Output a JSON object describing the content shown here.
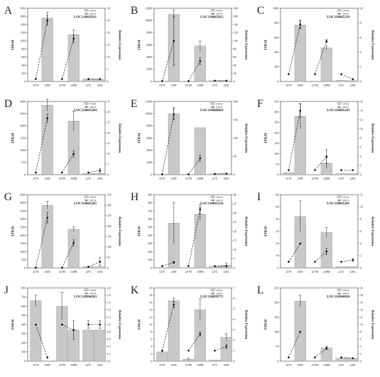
{
  "figure": {
    "legend_fpkm": "FPKM",
    "legend_qpcr": "QPCR",
    "ylabel_left": "FPKM",
    "ylabel_right": "Relative Expression",
    "colors": {
      "bar": "#c8c8c8",
      "bar_stroke": "#8a8a8a",
      "line": "#000000",
      "error": "#222222"
    }
  },
  "chart_data": [
    {
      "panel": "A",
      "type": "bar",
      "gene": "LOC110865031",
      "categories": [
        "227E",
        "228E",
        "227M",
        "228M",
        "227L",
        "228L"
      ],
      "series": [
        {
          "name": "FPKM",
          "values": [
            0,
            1560,
            0,
            1150,
            60,
            50
          ],
          "errors": [
            0,
            140,
            0,
            120,
            0,
            0
          ]
        },
        {
          "name": "QPCR",
          "values": [
            1,
            25,
            1,
            17.5,
            1,
            1
          ],
          "errors": [
            0,
            2,
            0,
            1.5,
            0,
            0
          ]
        }
      ],
      "yticks_left": [
        "0",
        "200",
        "400",
        "600",
        "800",
        "1000",
        "1200",
        "1400",
        "1600",
        "1800"
      ],
      "ylim_left": [
        0,
        1800
      ],
      "yticks_right": [
        "0",
        "5",
        "10",
        "15",
        "20",
        "25",
        "30"
      ],
      "ylim_right": [
        0,
        30
      ]
    },
    {
      "panel": "B",
      "type": "bar",
      "gene": "LOC110865032",
      "categories": [
        "227E",
        "228E",
        "227M",
        "228M",
        "227L",
        "228L"
      ],
      "series": [
        {
          "name": "FPKM",
          "values": [
            0,
            11000,
            0,
            5800,
            150,
            100
          ],
          "errors": [
            0,
            700,
            0,
            800,
            0,
            0
          ]
        },
        {
          "name": "QPCR",
          "values": [
            1,
            100,
            1,
            50,
            2,
            2
          ],
          "errors": [
            0,
            60,
            0,
            8,
            0,
            0
          ]
        }
      ],
      "yticks_left": [
        "0",
        "2000",
        "4000",
        "6000",
        "8000",
        "10000",
        "12000"
      ],
      "ylim_left": [
        0,
        12000
      ],
      "yticks_right": [
        "0",
        "20",
        "40",
        "60",
        "80",
        "100",
        "120",
        "140",
        "160",
        "180"
      ],
      "ylim_right": [
        0,
        180
      ]
    },
    {
      "panel": "C",
      "type": "bar",
      "gene": "LOC110865239",
      "categories": [
        "227E",
        "228E",
        "227M",
        "228M",
        "227L",
        "228L"
      ],
      "series": [
        {
          "name": "FPKM",
          "values": [
            0,
            770,
            0,
            460,
            15,
            10
          ],
          "errors": [
            0,
            55,
            0,
            25,
            0,
            0
          ]
        },
        {
          "name": "QPCR",
          "values": [
            1,
            7.8,
            1,
            5.5,
            1,
            0.3
          ],
          "errors": [
            0,
            0.6,
            0,
            0.2,
            0,
            0
          ]
        }
      ],
      "yticks_left": [
        "0",
        "200",
        "400",
        "600",
        "800",
        "1000"
      ],
      "ylim_left": [
        0,
        1000
      ],
      "yticks_right": [
        "0",
        "2",
        "4",
        "6",
        "8",
        "10"
      ],
      "ylim_right": [
        0,
        10
      ]
    },
    {
      "panel": "D",
      "type": "bar",
      "gene": "LOC110865284",
      "categories": [
        "227E",
        "228E",
        "227M",
        "228M",
        "227L",
        "228L"
      ],
      "series": [
        {
          "name": "FPKM",
          "values": [
            0,
            2850,
            0,
            2200,
            50,
            50
          ],
          "errors": [
            0,
            250,
            0,
            400,
            0,
            0
          ]
        },
        {
          "name": "QPCR",
          "values": [
            1,
            27,
            1,
            10,
            1,
            2
          ],
          "errors": [
            0,
            2,
            0,
            1.5,
            0,
            1
          ]
        }
      ],
      "yticks_left": [
        "0",
        "500",
        "1000",
        "1500",
        "2000",
        "2500",
        "3000"
      ],
      "ylim_left": [
        0,
        3000
      ],
      "yticks_right": [
        "0",
        "5",
        "10",
        "15",
        "20",
        "25",
        "30",
        "35"
      ],
      "ylim_right": [
        0,
        35
      ]
    },
    {
      "panel": "E",
      "type": "bar",
      "gene": "LOC110868664",
      "categories": [
        "227E",
        "228E",
        "227M",
        "228M",
        "227L",
        "228L"
      ],
      "series": [
        {
          "name": "FPKM",
          "values": [
            0,
            10000,
            0,
            7700,
            150,
            150
          ],
          "errors": [
            0,
            1000,
            0,
            0,
            0,
            0
          ]
        },
        {
          "name": "QPCR",
          "values": [
            1,
            165,
            1,
            45,
            2,
            3
          ],
          "errors": [
            0,
            15,
            0,
            8,
            0,
            0
          ]
        }
      ],
      "yticks_left": [
        "0",
        "2000",
        "4000",
        "6000",
        "8000",
        "10000",
        "12000"
      ],
      "ylim_left": [
        0,
        12000
      ],
      "yticks_right": [
        "0",
        "50",
        "100",
        "150",
        "200"
      ],
      "ylim_right": [
        0,
        200
      ]
    },
    {
      "panel": "F",
      "type": "bar",
      "gene": "LOC110885243",
      "categories": [
        "227E",
        "228E",
        "227M",
        "228M",
        "227L",
        "228L"
      ],
      "series": [
        {
          "name": "FPKM",
          "values": [
            10,
            280,
            0,
            55,
            5,
            5
          ],
          "errors": [
            0,
            60,
            0,
            25,
            0,
            0
          ]
        },
        {
          "name": "QPCR",
          "values": [
            1,
            14,
            1,
            4,
            1,
            1
          ],
          "errors": [
            0,
            1.5,
            0,
            1.5,
            0,
            0
          ]
        }
      ],
      "yticks_left": [
        "0",
        "50",
        "100",
        "150",
        "200",
        "250",
        "300",
        "350"
      ],
      "ylim_left": [
        0,
        350
      ],
      "yticks_right": [
        "0",
        "2",
        "4",
        "6",
        "8",
        "10",
        "12",
        "14",
        "16"
      ],
      "ylim_right": [
        0,
        16
      ]
    },
    {
      "panel": "G",
      "type": "bar",
      "gene": "LOC110865285",
      "categories": [
        "227E",
        "228E",
        "227M",
        "228M",
        "227L",
        "228L"
      ],
      "series": [
        {
          "name": "FPKM",
          "values": [
            0,
            3850,
            0,
            2380,
            80,
            60
          ],
          "errors": [
            0,
            250,
            0,
            150,
            0,
            0
          ]
        },
        {
          "name": "QPCR",
          "values": [
            1,
            240,
            1,
            120,
            5,
            30
          ],
          "errors": [
            0,
            25,
            0,
            15,
            0,
            20
          ]
        }
      ],
      "yticks_left": [
        "0",
        "500",
        "1000",
        "1500",
        "2000",
        "2500",
        "3000",
        "3500",
        "4000",
        "4500"
      ],
      "ylim_left": [
        0,
        4500
      ],
      "yticks_right": [
        "0",
        "50",
        "100",
        "150",
        "200",
        "250",
        "300",
        "350"
      ],
      "ylim_right": [
        0,
        350
      ]
    },
    {
      "panel": "H",
      "type": "bar",
      "gene": "LOC110865236",
      "categories": [
        "227E",
        "228E",
        "227M",
        "228M",
        "227L",
        "228L"
      ],
      "series": [
        {
          "name": "FPKM",
          "values": [
            0,
            550,
            0,
            660,
            20,
            30
          ],
          "errors": [
            0,
            250,
            0,
            80,
            0,
            30
          ]
        },
        {
          "name": "QPCR",
          "values": [
            1,
            3,
            1,
            32,
            1,
            1
          ],
          "errors": [
            0,
            0.5,
            0,
            2.5,
            0,
            0
          ]
        }
      ],
      "yticks_left": [
        "0",
        "100",
        "200",
        "300",
        "400",
        "500",
        "600",
        "700",
        "800",
        "900"
      ],
      "ylim_left": [
        0,
        900
      ],
      "yticks_right": [
        "0",
        "5",
        "10",
        "15",
        "20",
        "25",
        "30",
        "35",
        "40"
      ],
      "ylim_right": [
        0,
        40
      ]
    },
    {
      "panel": "I",
      "type": "bar",
      "gene": "LOC110865281",
      "categories": [
        "227E",
        "228E",
        "227M",
        "228M",
        "227L",
        "228L"
      ],
      "series": [
        {
          "name": "FPKM",
          "values": [
            0,
            42,
            0,
            29,
            1,
            1
          ],
          "errors": [
            0,
            13,
            0,
            4,
            0,
            0
          ]
        },
        {
          "name": "QPCR",
          "values": [
            1,
            4,
            1,
            2.7,
            1,
            1.3
          ],
          "errors": [
            0,
            0,
            0,
            0.5,
            0,
            0.2
          ]
        }
      ],
      "yticks_left": [
        "0",
        "10",
        "20",
        "30",
        "40",
        "50",
        "60"
      ],
      "ylim_left": [
        0,
        60
      ],
      "yticks_right": [
        "0",
        "2",
        "4",
        "6",
        "8",
        "10",
        "12"
      ],
      "ylim_right": [
        0,
        12
      ]
    },
    {
      "panel": "J",
      "type": "bar",
      "gene": "LOC110904203",
      "categories": [
        "227E",
        "228E",
        "227M",
        "228M",
        "227L",
        "228L"
      ],
      "series": [
        {
          "name": "FPKM",
          "values": [
            660,
            0,
            600,
            340,
            340,
            340
          ],
          "errors": [
            60,
            0,
            150,
            0,
            0,
            0
          ]
        },
        {
          "name": "QPCR",
          "values": [
            1,
            0.1,
            1,
            0.85,
            1,
            1
          ],
          "errors": [
            0,
            0,
            0,
            0.25,
            0.1,
            0.1
          ]
        }
      ],
      "yticks_left": [
        "0",
        "100",
        "200",
        "300",
        "400",
        "500",
        "600",
        "700",
        "800"
      ],
      "ylim_left": [
        0,
        800
      ],
      "yticks_right": [
        "0.0",
        "0.2",
        "0.4",
        "0.6",
        "0.8",
        "1.0",
        "1.2",
        "1.4",
        "1.6",
        "1.8",
        "2.0"
      ],
      "ylim_right": [
        0,
        2.0
      ]
    },
    {
      "panel": "K",
      "type": "bar",
      "gene": "LOC110899775",
      "categories": [
        "227E",
        "228E",
        "227M",
        "228M",
        "227L",
        "228L"
      ],
      "series": [
        {
          "name": "FPKM",
          "values": [
            2.5,
            16.5,
            0.5,
            14,
            0.3,
            6.5
          ],
          "errors": [
            0.3,
            0.7,
            0.4,
            3,
            0,
            1
          ]
        },
        {
          "name": "QPCR",
          "values": [
            1,
            5.4,
            1,
            2.6,
            1,
            1.4
          ],
          "errors": [
            0,
            0.3,
            0,
            0.2,
            0,
            0.2
          ]
        }
      ],
      "yticks_left": [
        "0",
        "2",
        "4",
        "6",
        "8",
        "10",
        "12",
        "14",
        "16",
        "18",
        "20"
      ],
      "ylim_left": [
        0,
        20
      ],
      "yticks_right": [
        "0",
        "1",
        "2",
        "3",
        "4",
        "5",
        "6",
        "7"
      ],
      "ylim_right": [
        0,
        7
      ]
    },
    {
      "panel": "L",
      "type": "bar",
      "gene": "LOC110904830",
      "categories": [
        "227E",
        "228E",
        "227M",
        "228M",
        "227L",
        "228L"
      ],
      "series": [
        {
          "name": "FPKM",
          "values": [
            0,
            205,
            0,
            45,
            10,
            10
          ],
          "errors": [
            0,
            20,
            0,
            5,
            0,
            0
          ]
        },
        {
          "name": "QPCR",
          "values": [
            1,
            8,
            1,
            3.5,
            1,
            0.8
          ],
          "errors": [
            0,
            0,
            0,
            0.3,
            0,
            0
          ]
        }
      ],
      "yticks_left": [
        "0",
        "50",
        "100",
        "150",
        "200",
        "250"
      ],
      "ylim_left": [
        0,
        250
      ],
      "yticks_right": [
        "0",
        "2",
        "4",
        "6",
        "8",
        "10",
        "12",
        "14",
        "16",
        "18",
        "20"
      ],
      "ylim_right": [
        0,
        20
      ]
    }
  ]
}
